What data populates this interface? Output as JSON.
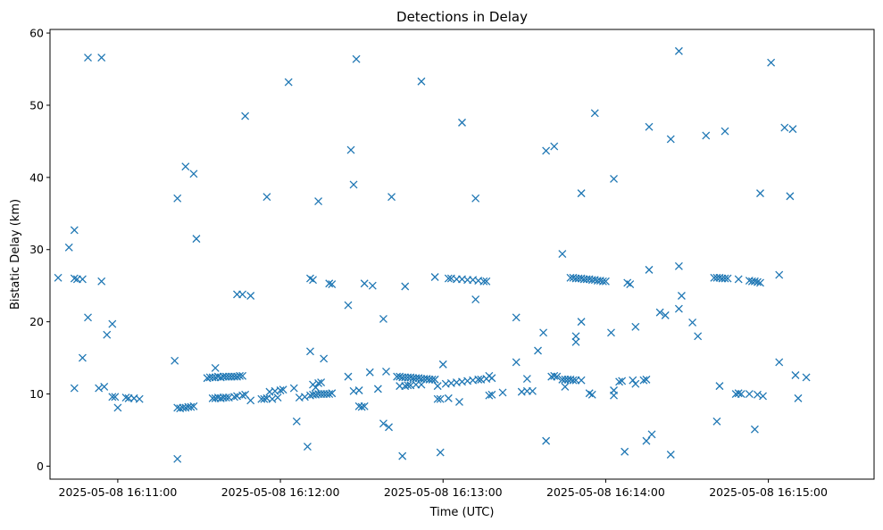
{
  "chart_data": {
    "type": "scatter",
    "title": "Detections in Delay",
    "xlabel": "Time (UTC)",
    "ylabel": "Bistatic Delay (km)",
    "marker": "x",
    "color": "#1f77b4",
    "grid": false,
    "x_unit": "seconds",
    "x_ticks": [
      {
        "value": "2025-05-08 16:11:00",
        "label": "2025-05-08 16:11:00"
      },
      {
        "value": "2025-05-08 16:12:00",
        "label": "2025-05-08 16:12:00"
      },
      {
        "value": "2025-05-08 16:13:00",
        "label": "2025-05-08 16:13:00"
      },
      {
        "value": "2025-05-08 16:14:00",
        "label": "2025-05-08 16:14:00"
      },
      {
        "value": "2025-05-08 16:15:00",
        "label": "2025-05-08 16:15:00"
      }
    ],
    "y_ticks": [
      0,
      10,
      20,
      30,
      40,
      50,
      60
    ],
    "xlim": [
      "2025-05-08 16:10:35",
      "2025-05-08 16:15:39"
    ],
    "ylim": [
      -1.8,
      60.5
    ],
    "points": [
      [
        "2025-05-08 16:10:38",
        26.1
      ],
      [
        "2025-05-08 16:10:42",
        30.3
      ],
      [
        "2025-05-08 16:10:44",
        26.0
      ],
      [
        "2025-05-08 16:10:44",
        32.7
      ],
      [
        "2025-05-08 16:10:44",
        10.8
      ],
      [
        "2025-05-08 16:10:45",
        25.9
      ],
      [
        "2025-05-08 16:10:47",
        25.9
      ],
      [
        "2025-05-08 16:10:47",
        15.0
      ],
      [
        "2025-05-08 16:10:49",
        20.6
      ],
      [
        "2025-05-08 16:10:49",
        56.6
      ],
      [
        "2025-05-08 16:10:54",
        56.6
      ],
      [
        "2025-05-08 16:10:54",
        25.6
      ],
      [
        "2025-05-08 16:10:53",
        10.8
      ],
      [
        "2025-05-08 16:10:55",
        11.0
      ],
      [
        "2025-05-08 16:10:56",
        18.2
      ],
      [
        "2025-05-08 16:10:58",
        19.7
      ],
      [
        "2025-05-08 16:10:58",
        9.6
      ],
      [
        "2025-05-08 16:10:59",
        9.6
      ],
      [
        "2025-05-08 16:11:00",
        8.1
      ],
      [
        "2025-05-08 16:11:03",
        9.5
      ],
      [
        "2025-05-08 16:11:04",
        9.4
      ],
      [
        "2025-05-08 16:11:06",
        9.4
      ],
      [
        "2025-05-08 16:11:08",
        9.3
      ],
      [
        "2025-05-08 16:11:21",
        14.6
      ],
      [
        "2025-05-08 16:11:22",
        8.1
      ],
      [
        "2025-05-08 16:11:23",
        8.0
      ],
      [
        "2025-05-08 16:11:24",
        8.1
      ],
      [
        "2025-05-08 16:11:25",
        8.1
      ],
      [
        "2025-05-08 16:11:26",
        8.2
      ],
      [
        "2025-05-08 16:11:27",
        8.2
      ],
      [
        "2025-05-08 16:11:22",
        37.1
      ],
      [
        "2025-05-08 16:11:22",
        1.0
      ],
      [
        "2025-05-08 16:11:25",
        41.5
      ],
      [
        "2025-05-08 16:11:28",
        40.5
      ],
      [
        "2025-05-08 16:11:29",
        31.5
      ],
      [
        "2025-05-08 16:11:28",
        8.3
      ],
      [
        "2025-05-08 16:11:33",
        12.2
      ],
      [
        "2025-05-08 16:11:34",
        12.3
      ],
      [
        "2025-05-08 16:11:35",
        12.3
      ],
      [
        "2025-05-08 16:11:36",
        12.3
      ],
      [
        "2025-05-08 16:11:37",
        12.4
      ],
      [
        "2025-05-08 16:11:38",
        12.3
      ],
      [
        "2025-05-08 16:11:39",
        12.4
      ],
      [
        "2025-05-08 16:11:40",
        12.4
      ],
      [
        "2025-05-08 16:11:41",
        12.4
      ],
      [
        "2025-05-08 16:11:42",
        12.4
      ],
      [
        "2025-05-08 16:11:43",
        12.4
      ],
      [
        "2025-05-08 16:11:44",
        12.4
      ],
      [
        "2025-05-08 16:11:45",
        12.5
      ],
      [
        "2025-05-08 16:11:46",
        12.5
      ],
      [
        "2025-05-08 16:11:36",
        13.6
      ],
      [
        "2025-05-08 16:11:35",
        9.4
      ],
      [
        "2025-05-08 16:11:36",
        9.4
      ],
      [
        "2025-05-08 16:11:37",
        9.5
      ],
      [
        "2025-05-08 16:11:38",
        9.4
      ],
      [
        "2025-05-08 16:11:39",
        9.5
      ],
      [
        "2025-05-08 16:11:40",
        9.5
      ],
      [
        "2025-05-08 16:11:41",
        9.5
      ],
      [
        "2025-05-08 16:11:43",
        9.6
      ],
      [
        "2025-05-08 16:11:44",
        9.7
      ],
      [
        "2025-05-08 16:11:46",
        9.8
      ],
      [
        "2025-05-08 16:11:47",
        9.9
      ],
      [
        "2025-05-08 16:11:49",
        9.1
      ],
      [
        "2025-05-08 16:11:44",
        23.8
      ],
      [
        "2025-05-08 16:11:46",
        23.8
      ],
      [
        "2025-05-08 16:11:49",
        23.6
      ],
      [
        "2025-05-08 16:11:47",
        48.5
      ],
      [
        "2025-05-08 16:11:55",
        37.3
      ],
      [
        "2025-05-08 16:11:53",
        9.3
      ],
      [
        "2025-05-08 16:11:54",
        9.3
      ],
      [
        "2025-05-08 16:11:55",
        9.4
      ],
      [
        "2025-05-08 16:11:56",
        10.3
      ],
      [
        "2025-05-08 16:11:57",
        9.3
      ],
      [
        "2025-05-08 16:11:58",
        10.4
      ],
      [
        "2025-05-08 16:11:59",
        9.5
      ],
      [
        "2025-05-08 16:12:00",
        10.5
      ],
      [
        "2025-05-08 16:12:01",
        10.6
      ],
      [
        "2025-05-08 16:12:03",
        53.2
      ],
      [
        "2025-05-08 16:12:05",
        10.8
      ],
      [
        "2025-05-08 16:12:06",
        6.2
      ],
      [
        "2025-05-08 16:12:07",
        9.5
      ],
      [
        "2025-05-08 16:12:09",
        9.6
      ],
      [
        "2025-05-08 16:12:10",
        2.7
      ],
      [
        "2025-05-08 16:12:11",
        15.9
      ],
      [
        "2025-05-08 16:12:11",
        26.0
      ],
      [
        "2025-05-08 16:12:12",
        25.8
      ],
      [
        "2025-05-08 16:12:12",
        11.3
      ],
      [
        "2025-05-08 16:12:13",
        10.9
      ],
      [
        "2025-05-08 16:12:14",
        11.5
      ],
      [
        "2025-05-08 16:12:15",
        11.6
      ],
      [
        "2025-05-08 16:12:14",
        36.7
      ],
      [
        "2025-05-08 16:12:16",
        14.9
      ],
      [
        "2025-05-08 16:12:18",
        25.3
      ],
      [
        "2025-05-08 16:12:19",
        25.2
      ],
      [
        "2025-05-08 16:12:11",
        9.8
      ],
      [
        "2025-05-08 16:12:12",
        9.9
      ],
      [
        "2025-05-08 16:12:13",
        9.9
      ],
      [
        "2025-05-08 16:12:14",
        10.0
      ],
      [
        "2025-05-08 16:12:15",
        10.0
      ],
      [
        "2025-05-08 16:12:16",
        10.0
      ],
      [
        "2025-05-08 16:12:17",
        10.0
      ],
      [
        "2025-05-08 16:12:18",
        10.0
      ],
      [
        "2025-05-08 16:12:19",
        10.1
      ],
      [
        "2025-05-08 16:12:25",
        22.3
      ],
      [
        "2025-05-08 16:12:25",
        12.4
      ],
      [
        "2025-05-08 16:12:26",
        43.8
      ],
      [
        "2025-05-08 16:12:27",
        39.0
      ],
      [
        "2025-05-08 16:12:27",
        10.4
      ],
      [
        "2025-05-08 16:12:28",
        56.4
      ],
      [
        "2025-05-08 16:12:29",
        10.5
      ],
      [
        "2025-05-08 16:12:29",
        8.3
      ],
      [
        "2025-05-08 16:12:30",
        8.2
      ],
      [
        "2025-05-08 16:12:31",
        8.3
      ],
      [
        "2025-05-08 16:12:31",
        25.3
      ],
      [
        "2025-05-08 16:12:34",
        25.0
      ],
      [
        "2025-05-08 16:12:33",
        13.0
      ],
      [
        "2025-05-08 16:12:36",
        10.7
      ],
      [
        "2025-05-08 16:12:38",
        20.4
      ],
      [
        "2025-05-08 16:12:38",
        5.9
      ],
      [
        "2025-05-08 16:12:39",
        13.1
      ],
      [
        "2025-05-08 16:12:40",
        5.4
      ],
      [
        "2025-05-08 16:12:41",
        37.3
      ],
      [
        "2025-05-08 16:12:43",
        12.4
      ],
      [
        "2025-05-08 16:12:44",
        12.4
      ],
      [
        "2025-05-08 16:12:45",
        12.3
      ],
      [
        "2025-05-08 16:12:46",
        12.3
      ],
      [
        "2025-05-08 16:12:47",
        12.3
      ],
      [
        "2025-05-08 16:12:48",
        12.3
      ],
      [
        "2025-05-08 16:12:49",
        12.2
      ],
      [
        "2025-05-08 16:12:50",
        12.2
      ],
      [
        "2025-05-08 16:12:51",
        12.2
      ],
      [
        "2025-05-08 16:12:52",
        12.1
      ],
      [
        "2025-05-08 16:12:53",
        12.1
      ],
      [
        "2025-05-08 16:12:54",
        12.1
      ],
      [
        "2025-05-08 16:12:55",
        12.0
      ],
      [
        "2025-05-08 16:12:56",
        12.0
      ],
      [
        "2025-05-08 16:12:57",
        12.0
      ],
      [
        "2025-05-08 16:12:44",
        11.1
      ],
      [
        "2025-05-08 16:12:46",
        11.1
      ],
      [
        "2025-05-08 16:12:47",
        11.2
      ],
      [
        "2025-05-08 16:12:48",
        11.2
      ],
      [
        "2025-05-08 16:12:50",
        11.3
      ],
      [
        "2025-05-08 16:12:52",
        11.3
      ],
      [
        "2025-05-08 16:12:45",
        1.4
      ],
      [
        "2025-05-08 16:12:46",
        24.9
      ],
      [
        "2025-05-08 16:12:52",
        53.3
      ],
      [
        "2025-05-08 16:12:57",
        26.2
      ],
      [
        "2025-05-08 16:12:58",
        11.1
      ],
      [
        "2025-05-08 16:12:58",
        9.3
      ],
      [
        "2025-05-08 16:12:59",
        9.3
      ],
      [
        "2025-05-08 16:12:59",
        1.9
      ],
      [
        "2025-05-08 16:13:00",
        14.1
      ],
      [
        "2025-05-08 16:13:01",
        11.4
      ],
      [
        "2025-05-08 16:13:02",
        9.4
      ],
      [
        "2025-05-08 16:13:02",
        26.0
      ],
      [
        "2025-05-08 16:13:03",
        11.5
      ],
      [
        "2025-05-08 16:13:03",
        26.0
      ],
      [
        "2025-05-08 16:13:05",
        11.6
      ],
      [
        "2025-05-08 16:13:05",
        25.9
      ],
      [
        "2025-05-08 16:13:06",
        8.9
      ],
      [
        "2025-05-08 16:13:07",
        11.7
      ],
      [
        "2025-05-08 16:13:07",
        25.9
      ],
      [
        "2025-05-08 16:13:07",
        47.6
      ],
      [
        "2025-05-08 16:13:09",
        11.8
      ],
      [
        "2025-05-08 16:13:09",
        25.8
      ],
      [
        "2025-05-08 16:13:11",
        11.9
      ],
      [
        "2025-05-08 16:13:11",
        25.8
      ],
      [
        "2025-05-08 16:13:12",
        23.1
      ],
      [
        "2025-05-08 16:13:12",
        37.1
      ],
      [
        "2025-05-08 16:13:13",
        12.0
      ],
      [
        "2025-05-08 16:13:13",
        25.7
      ],
      [
        "2025-05-08 16:13:14",
        12.0
      ],
      [
        "2025-05-08 16:13:15",
        25.6
      ],
      [
        "2025-05-08 16:13:16",
        12.1
      ],
      [
        "2025-05-08 16:13:16",
        25.6
      ],
      [
        "2025-05-08 16:13:17",
        12.5
      ],
      [
        "2025-05-08 16:13:17",
        9.8
      ],
      [
        "2025-05-08 16:13:18",
        12.2
      ],
      [
        "2025-05-08 16:13:18",
        9.9
      ],
      [
        "2025-05-08 16:13:22",
        10.2
      ],
      [
        "2025-05-08 16:13:27",
        20.6
      ],
      [
        "2025-05-08 16:13:27",
        14.4
      ],
      [
        "2025-05-08 16:13:29",
        10.3
      ],
      [
        "2025-05-08 16:13:31",
        12.1
      ],
      [
        "2025-05-08 16:13:31",
        10.4
      ],
      [
        "2025-05-08 16:13:33",
        10.4
      ],
      [
        "2025-05-08 16:13:35",
        16.0
      ],
      [
        "2025-05-08 16:13:37",
        18.5
      ],
      [
        "2025-05-08 16:13:38",
        43.7
      ],
      [
        "2025-05-08 16:13:38",
        3.5
      ],
      [
        "2025-05-08 16:13:41",
        44.3
      ],
      [
        "2025-05-08 16:13:40",
        12.4
      ],
      [
        "2025-05-08 16:13:41",
        12.5
      ],
      [
        "2025-05-08 16:13:42",
        12.4
      ],
      [
        "2025-05-08 16:13:44",
        29.4
      ],
      [
        "2025-05-08 16:13:44",
        12.0
      ],
      [
        "2025-05-08 16:13:45",
        11.0
      ],
      [
        "2025-05-08 16:13:45",
        12.0
      ],
      [
        "2025-05-08 16:13:46",
        12.0
      ],
      [
        "2025-05-08 16:13:47",
        12.0
      ],
      [
        "2025-05-08 16:13:48",
        11.9
      ],
      [
        "2025-05-08 16:13:49",
        18.0
      ],
      [
        "2025-05-08 16:13:49",
        17.2
      ],
      [
        "2025-05-08 16:13:49",
        11.9
      ],
      [
        "2025-05-08 16:13:51",
        37.8
      ],
      [
        "2025-05-08 16:13:51",
        20.0
      ],
      [
        "2025-05-08 16:13:51",
        11.9
      ],
      [
        "2025-05-08 16:13:54",
        10.1
      ],
      [
        "2025-05-08 16:13:55",
        9.9
      ],
      [
        "2025-05-08 16:13:47",
        26.1
      ],
      [
        "2025-05-08 16:13:48",
        26.1
      ],
      [
        "2025-05-08 16:13:49",
        26.0
      ],
      [
        "2025-05-08 16:13:50",
        26.0
      ],
      [
        "2025-05-08 16:13:51",
        26.0
      ],
      [
        "2025-05-08 16:13:52",
        25.9
      ],
      [
        "2025-05-08 16:13:53",
        25.9
      ],
      [
        "2025-05-08 16:13:54",
        25.9
      ],
      [
        "2025-05-08 16:13:55",
        25.8
      ],
      [
        "2025-05-08 16:13:56",
        25.8
      ],
      [
        "2025-05-08 16:13:57",
        25.7
      ],
      [
        "2025-05-08 16:13:58",
        25.7
      ],
      [
        "2025-05-08 16:13:59",
        25.6
      ],
      [
        "2025-05-08 16:14:00",
        25.6
      ],
      [
        "2025-05-08 16:13:56",
        48.9
      ],
      [
        "2025-05-08 16:14:02",
        18.5
      ],
      [
        "2025-05-08 16:14:03",
        39.8
      ],
      [
        "2025-05-08 16:14:03",
        9.8
      ],
      [
        "2025-05-08 16:14:03",
        10.5
      ],
      [
        "2025-05-08 16:14:05",
        11.7
      ],
      [
        "2025-05-08 16:14:06",
        11.8
      ],
      [
        "2025-05-08 16:14:07",
        2.0
      ],
      [
        "2025-05-08 16:14:08",
        25.4
      ],
      [
        "2025-05-08 16:14:09",
        25.2
      ],
      [
        "2025-05-08 16:14:10",
        11.9
      ],
      [
        "2025-05-08 16:14:11",
        11.4
      ],
      [
        "2025-05-08 16:14:11",
        19.3
      ],
      [
        "2025-05-08 16:14:14",
        11.9
      ],
      [
        "2025-05-08 16:14:15",
        12.0
      ],
      [
        "2025-05-08 16:14:15",
        3.5
      ],
      [
        "2025-05-08 16:14:16",
        27.2
      ],
      [
        "2025-05-08 16:14:16",
        47.0
      ],
      [
        "2025-05-08 16:14:17",
        4.4
      ],
      [
        "2025-05-08 16:14:20",
        21.3
      ],
      [
        "2025-05-08 16:14:22",
        20.9
      ],
      [
        "2025-05-08 16:14:24",
        45.3
      ],
      [
        "2025-05-08 16:14:24",
        1.6
      ],
      [
        "2025-05-08 16:14:27",
        57.5
      ],
      [
        "2025-05-08 16:14:27",
        27.7
      ],
      [
        "2025-05-08 16:14:27",
        21.8
      ],
      [
        "2025-05-08 16:14:28",
        23.6
      ],
      [
        "2025-05-08 16:14:32",
        19.9
      ],
      [
        "2025-05-08 16:14:34",
        18.0
      ],
      [
        "2025-05-08 16:14:37",
        45.8
      ],
      [
        "2025-05-08 16:14:40",
        26.1
      ],
      [
        "2025-05-08 16:14:41",
        26.1
      ],
      [
        "2025-05-08 16:14:42",
        26.1
      ],
      [
        "2025-05-08 16:14:43",
        26.0
      ],
      [
        "2025-05-08 16:14:44",
        26.0
      ],
      [
        "2025-05-08 16:14:45",
        26.0
      ],
      [
        "2025-05-08 16:14:41",
        6.2
      ],
      [
        "2025-05-08 16:14:42",
        11.1
      ],
      [
        "2025-05-08 16:14:44",
        46.4
      ],
      [
        "2025-05-08 16:14:48",
        10.0
      ],
      [
        "2025-05-08 16:14:49",
        10.1
      ],
      [
        "2025-05-08 16:14:50",
        10.0
      ],
      [
        "2025-05-08 16:14:49",
        25.9
      ],
      [
        "2025-05-08 16:14:53",
        10.0
      ],
      [
        "2025-05-08 16:14:53",
        25.7
      ],
      [
        "2025-05-08 16:14:54",
        25.6
      ],
      [
        "2025-05-08 16:14:55",
        25.6
      ],
      [
        "2025-05-08 16:14:56",
        25.5
      ],
      [
        "2025-05-08 16:14:57",
        25.4
      ],
      [
        "2025-05-08 16:14:55",
        5.1
      ],
      [
        "2025-05-08 16:14:56",
        9.9
      ],
      [
        "2025-05-08 16:14:58",
        9.7
      ],
      [
        "2025-05-08 16:14:57",
        37.8
      ],
      [
        "2025-05-08 16:15:01",
        55.9
      ],
      [
        "2025-05-08 16:15:04",
        26.5
      ],
      [
        "2025-05-08 16:15:04",
        14.4
      ],
      [
        "2025-05-08 16:15:06",
        46.9
      ],
      [
        "2025-05-08 16:15:08",
        37.4
      ],
      [
        "2025-05-08 16:15:09",
        46.7
      ],
      [
        "2025-05-08 16:15:10",
        12.6
      ],
      [
        "2025-05-08 16:15:11",
        9.4
      ],
      [
        "2025-05-08 16:15:14",
        12.3
      ]
    ]
  }
}
